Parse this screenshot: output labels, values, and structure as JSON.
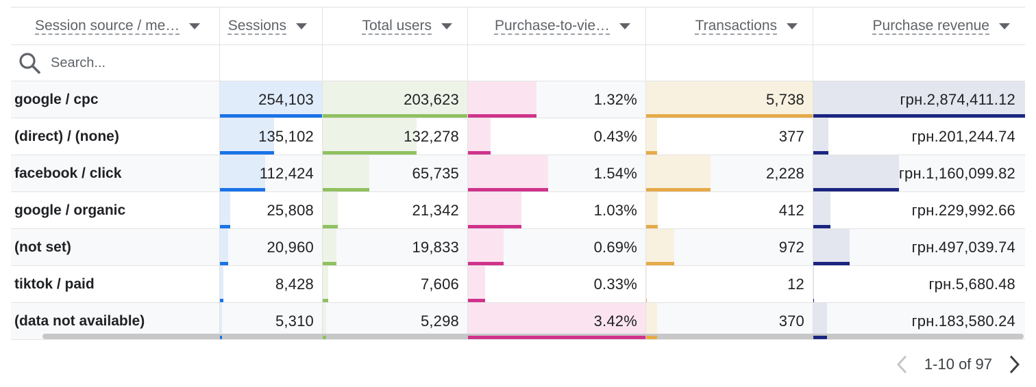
{
  "columns": [
    {
      "label": "Session source / me…"
    },
    {
      "label": "Sessions"
    },
    {
      "label": "Total users"
    },
    {
      "label": "Purchase-to-vie…"
    },
    {
      "label": "Transactions"
    },
    {
      "label": "Purchase revenue"
    }
  ],
  "search": {
    "placeholder": "Search..."
  },
  "rows": [
    {
      "source": "google / cpc",
      "sessions": "254,103",
      "users": "203,623",
      "p2v": "1.32%",
      "transactions": "5,738",
      "revenue": "грн.2,874,411.12",
      "sessions_level": 1.0,
      "users_level": 1.0,
      "p2v_level": 0.386,
      "transactions_level": 1.0,
      "revenue_level": 1.0
    },
    {
      "source": "(direct) / (none)",
      "sessions": "135,102",
      "users": "132,278",
      "p2v": "0.43%",
      "transactions": "377",
      "revenue": "грн.201,244.74",
      "sessions_level": 0.532,
      "users_level": 0.65,
      "p2v_level": 0.126,
      "transactions_level": 0.066,
      "revenue_level": 0.07
    },
    {
      "source": "facebook / click",
      "sessions": "112,424",
      "users": "65,735",
      "p2v": "1.54%",
      "transactions": "2,228",
      "revenue": "грн.1,160,099.82",
      "sessions_level": 0.442,
      "users_level": 0.323,
      "p2v_level": 0.45,
      "transactions_level": 0.388,
      "revenue_level": 0.404
    },
    {
      "source": "google / organic",
      "sessions": "25,808",
      "users": "21,342",
      "p2v": "1.03%",
      "transactions": "412",
      "revenue": "грн.229,992.66",
      "sessions_level": 0.102,
      "users_level": 0.105,
      "p2v_level": 0.301,
      "transactions_level": 0.072,
      "revenue_level": 0.08
    },
    {
      "source": "(not set)",
      "sessions": "20,960",
      "users": "19,833",
      "p2v": "0.69%",
      "transactions": "972",
      "revenue": "грн.497,039.74",
      "sessions_level": 0.082,
      "users_level": 0.097,
      "p2v_level": 0.202,
      "transactions_level": 0.169,
      "revenue_level": 0.173
    },
    {
      "source": "tiktok / paid",
      "sessions": "8,428",
      "users": "7,606",
      "p2v": "0.33%",
      "transactions": "12",
      "revenue": "грн.5,680.48",
      "sessions_level": 0.033,
      "users_level": 0.037,
      "p2v_level": 0.096,
      "transactions_level": 0.002,
      "revenue_level": 0.002
    },
    {
      "source": "(data not available)",
      "sessions": "5,310",
      "users": "5,298",
      "p2v": "3.42%",
      "transactions": "370",
      "revenue": "грн.183,580.24",
      "sessions_level": 0.021,
      "users_level": 0.026,
      "p2v_level": 1.0,
      "transactions_level": 0.064,
      "revenue_level": 0.064
    }
  ],
  "pagination": {
    "range": "1-10 of 97"
  },
  "colors": {
    "sessions": "#1a73e8",
    "users": "#8fc15f",
    "p2v": "#d0338b",
    "transactions": "#e6aa49",
    "revenue": "#1b2580"
  },
  "icons": [
    "search-icon",
    "chevron-down-icon",
    "chevron-left-icon",
    "chevron-right-icon"
  ]
}
